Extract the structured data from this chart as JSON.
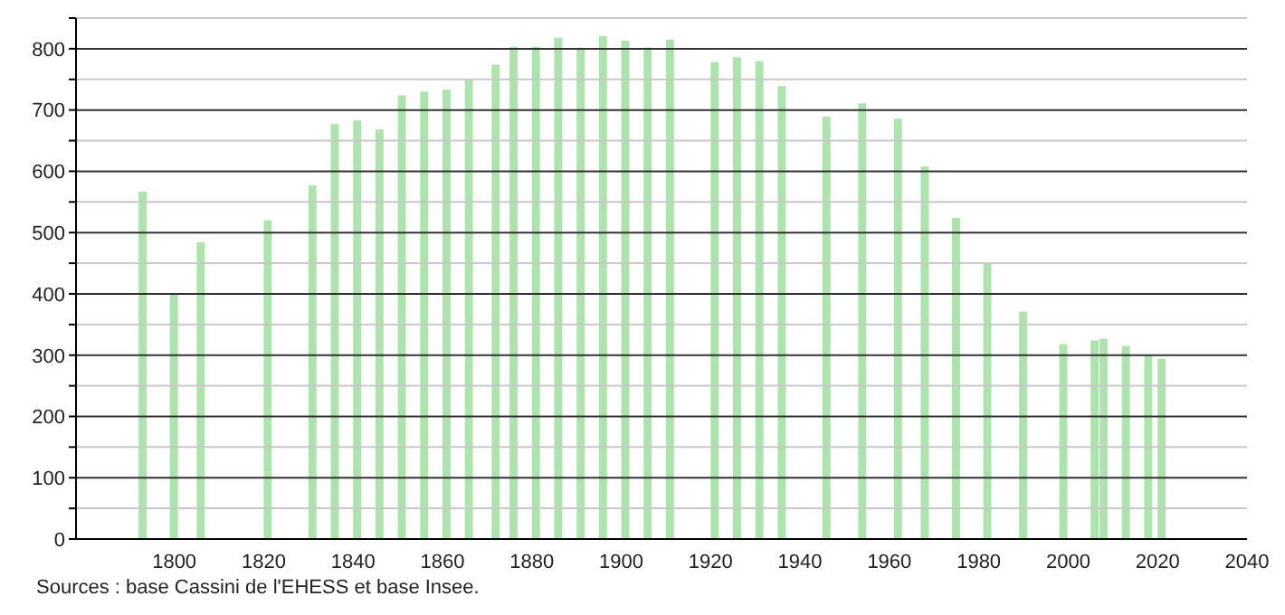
{
  "chart_data": {
    "type": "bar",
    "x": [
      1793,
      1800,
      1806,
      1821,
      1831,
      1836,
      1841,
      1846,
      1851,
      1856,
      1861,
      1866,
      1872,
      1876,
      1881,
      1886,
      1891,
      1896,
      1901,
      1906,
      1911,
      1921,
      1926,
      1931,
      1936,
      1946,
      1954,
      1962,
      1968,
      1975,
      1982,
      1990,
      1999,
      2006,
      2008,
      2013,
      2018,
      2021
    ],
    "values": [
      567,
      400,
      484,
      520,
      577,
      677,
      683,
      668,
      724,
      730,
      733,
      749,
      774,
      803,
      803,
      818,
      800,
      821,
      813,
      802,
      815,
      778,
      786,
      780,
      739,
      689,
      711,
      686,
      608,
      524,
      450,
      371,
      318,
      324,
      327,
      315,
      300,
      294
    ],
    "color": "#ade3ad",
    "xlim": [
      1778,
      2040
    ],
    "xticks": [
      1800,
      1820,
      1840,
      1860,
      1880,
      1900,
      1920,
      1940,
      1960,
      1980,
      2000,
      2020,
      2040
    ],
    "ylim": [
      0,
      850
    ],
    "yticks": [
      0,
      {
        "value": 50,
        "label": null
      },
      100,
      {
        "value": 150,
        "label": null
      },
      200,
      {
        "value": 250,
        "label": null
      },
      300,
      {
        "value": 350,
        "label": null
      },
      400,
      {
        "value": 450,
        "label": null
      },
      500,
      {
        "value": 550,
        "label": null
      },
      600,
      {
        "value": 650,
        "label": null
      },
      700,
      {
        "value": 750,
        "label": null
      },
      800,
      {
        "value": 850,
        "label": null
      }
    ],
    "grid": "y",
    "annotations": [
      "Sources : base Cassini de l'EHESS et base Insee."
    ]
  }
}
